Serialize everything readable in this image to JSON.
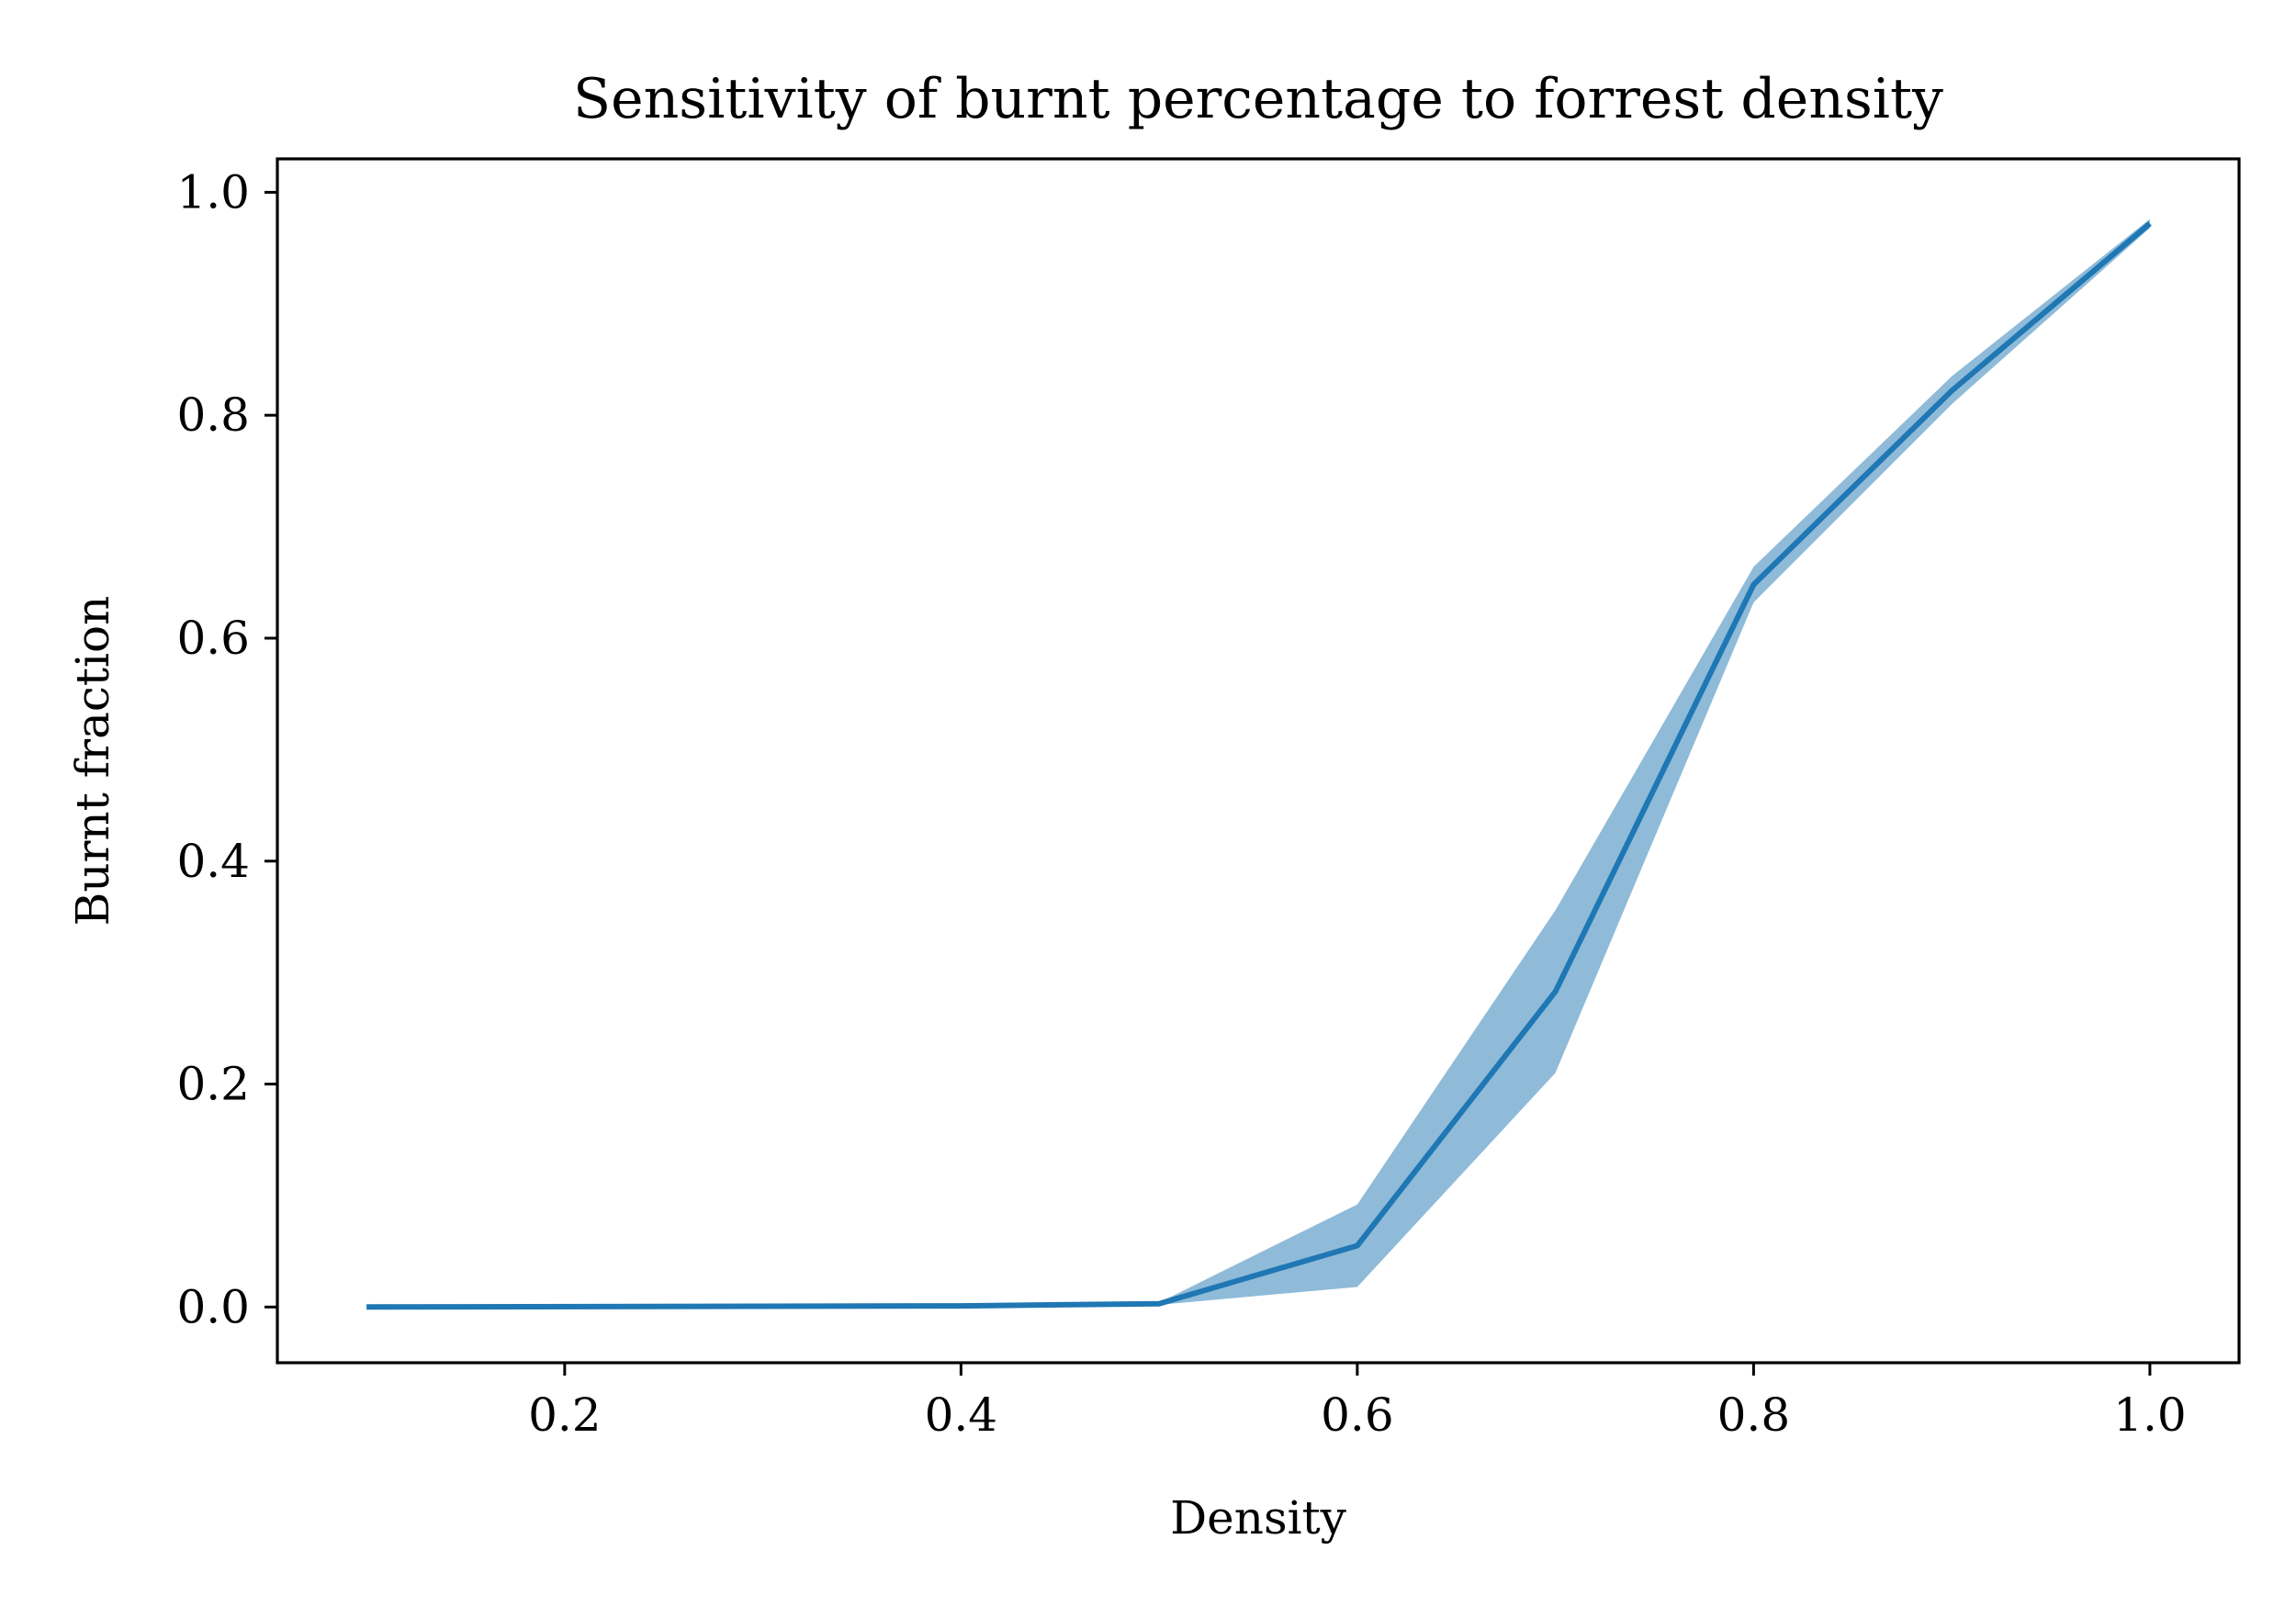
{
  "chart_data": {
    "type": "line",
    "title": "Sensitivity of burnt percentage to forrest density",
    "xlabel": "Density",
    "ylabel": "Burnt fraction",
    "xlim": [
      0.055,
      1.045
    ],
    "ylim": [
      -0.05,
      1.03
    ],
    "xticks": [
      0.2,
      0.4,
      0.6,
      0.8,
      1.0
    ],
    "xtick_labels": [
      "0.2",
      "0.4",
      "0.6",
      "0.8",
      "1.0"
    ],
    "yticks": [
      0.0,
      0.2,
      0.4,
      0.6,
      0.8,
      1.0
    ],
    "ytick_labels": [
      "0.0",
      "0.2",
      "0.4",
      "0.6",
      "0.8",
      "1.0"
    ],
    "grid": false,
    "series": [
      {
        "color": "#1f77b4",
        "x": [
          0.1,
          0.4,
          0.5,
          0.6,
          0.7,
          0.8,
          0.9,
          1.0
        ],
        "y": [
          0.0,
          0.001,
          0.003,
          0.055,
          0.283,
          0.648,
          0.822,
          0.972
        ],
        "lower": [
          0.0,
          0.001,
          0.002,
          0.018,
          0.21,
          0.632,
          0.81,
          0.968
        ],
        "upper": [
          0.0,
          0.002,
          0.004,
          0.092,
          0.356,
          0.664,
          0.835,
          0.976
        ]
      }
    ]
  }
}
